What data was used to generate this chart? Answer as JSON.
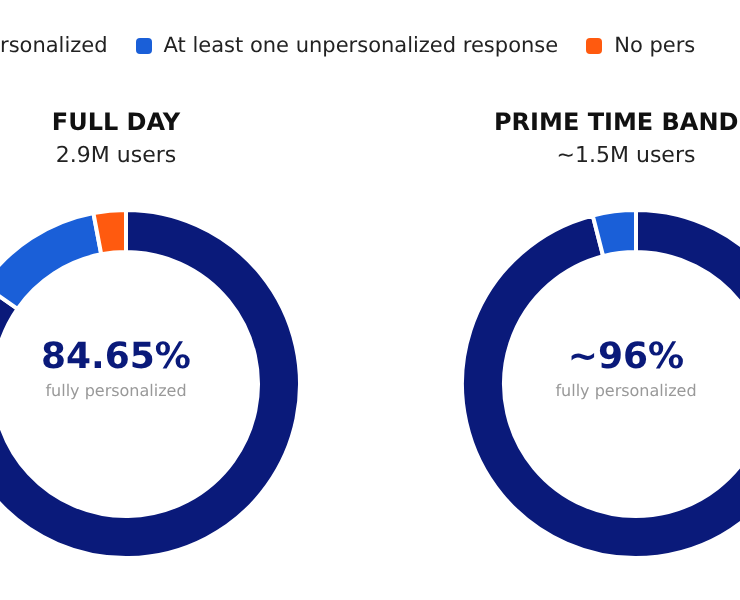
{
  "chart_data": [
    {
      "type": "donut",
      "title": "FULL DAY",
      "subtitle": "2.9M users",
      "categories": [
        "rsonalized",
        "At least one unpersonalized response",
        "No pers"
      ],
      "values": [
        84.65,
        12.35,
        3
      ],
      "colors": [
        "#0a1a7a",
        "#1a5fd8",
        "#ff5a0f"
      ],
      "legend": "top",
      "annotations": [
        "84.65%",
        "fully personalized"
      ]
    },
    {
      "type": "donut",
      "title": "PRIME TIME BAND",
      "subtitle": "~1.5M users",
      "categories": [
        null,
        null,
        null
      ],
      "values": [
        96,
        4,
        0
      ],
      "colors": [
        "#0a1a7a",
        "#1a5fd8",
        "#ff5a0f"
      ],
      "annotations": [
        "~96%",
        "fully personalized"
      ]
    }
  ]
}
